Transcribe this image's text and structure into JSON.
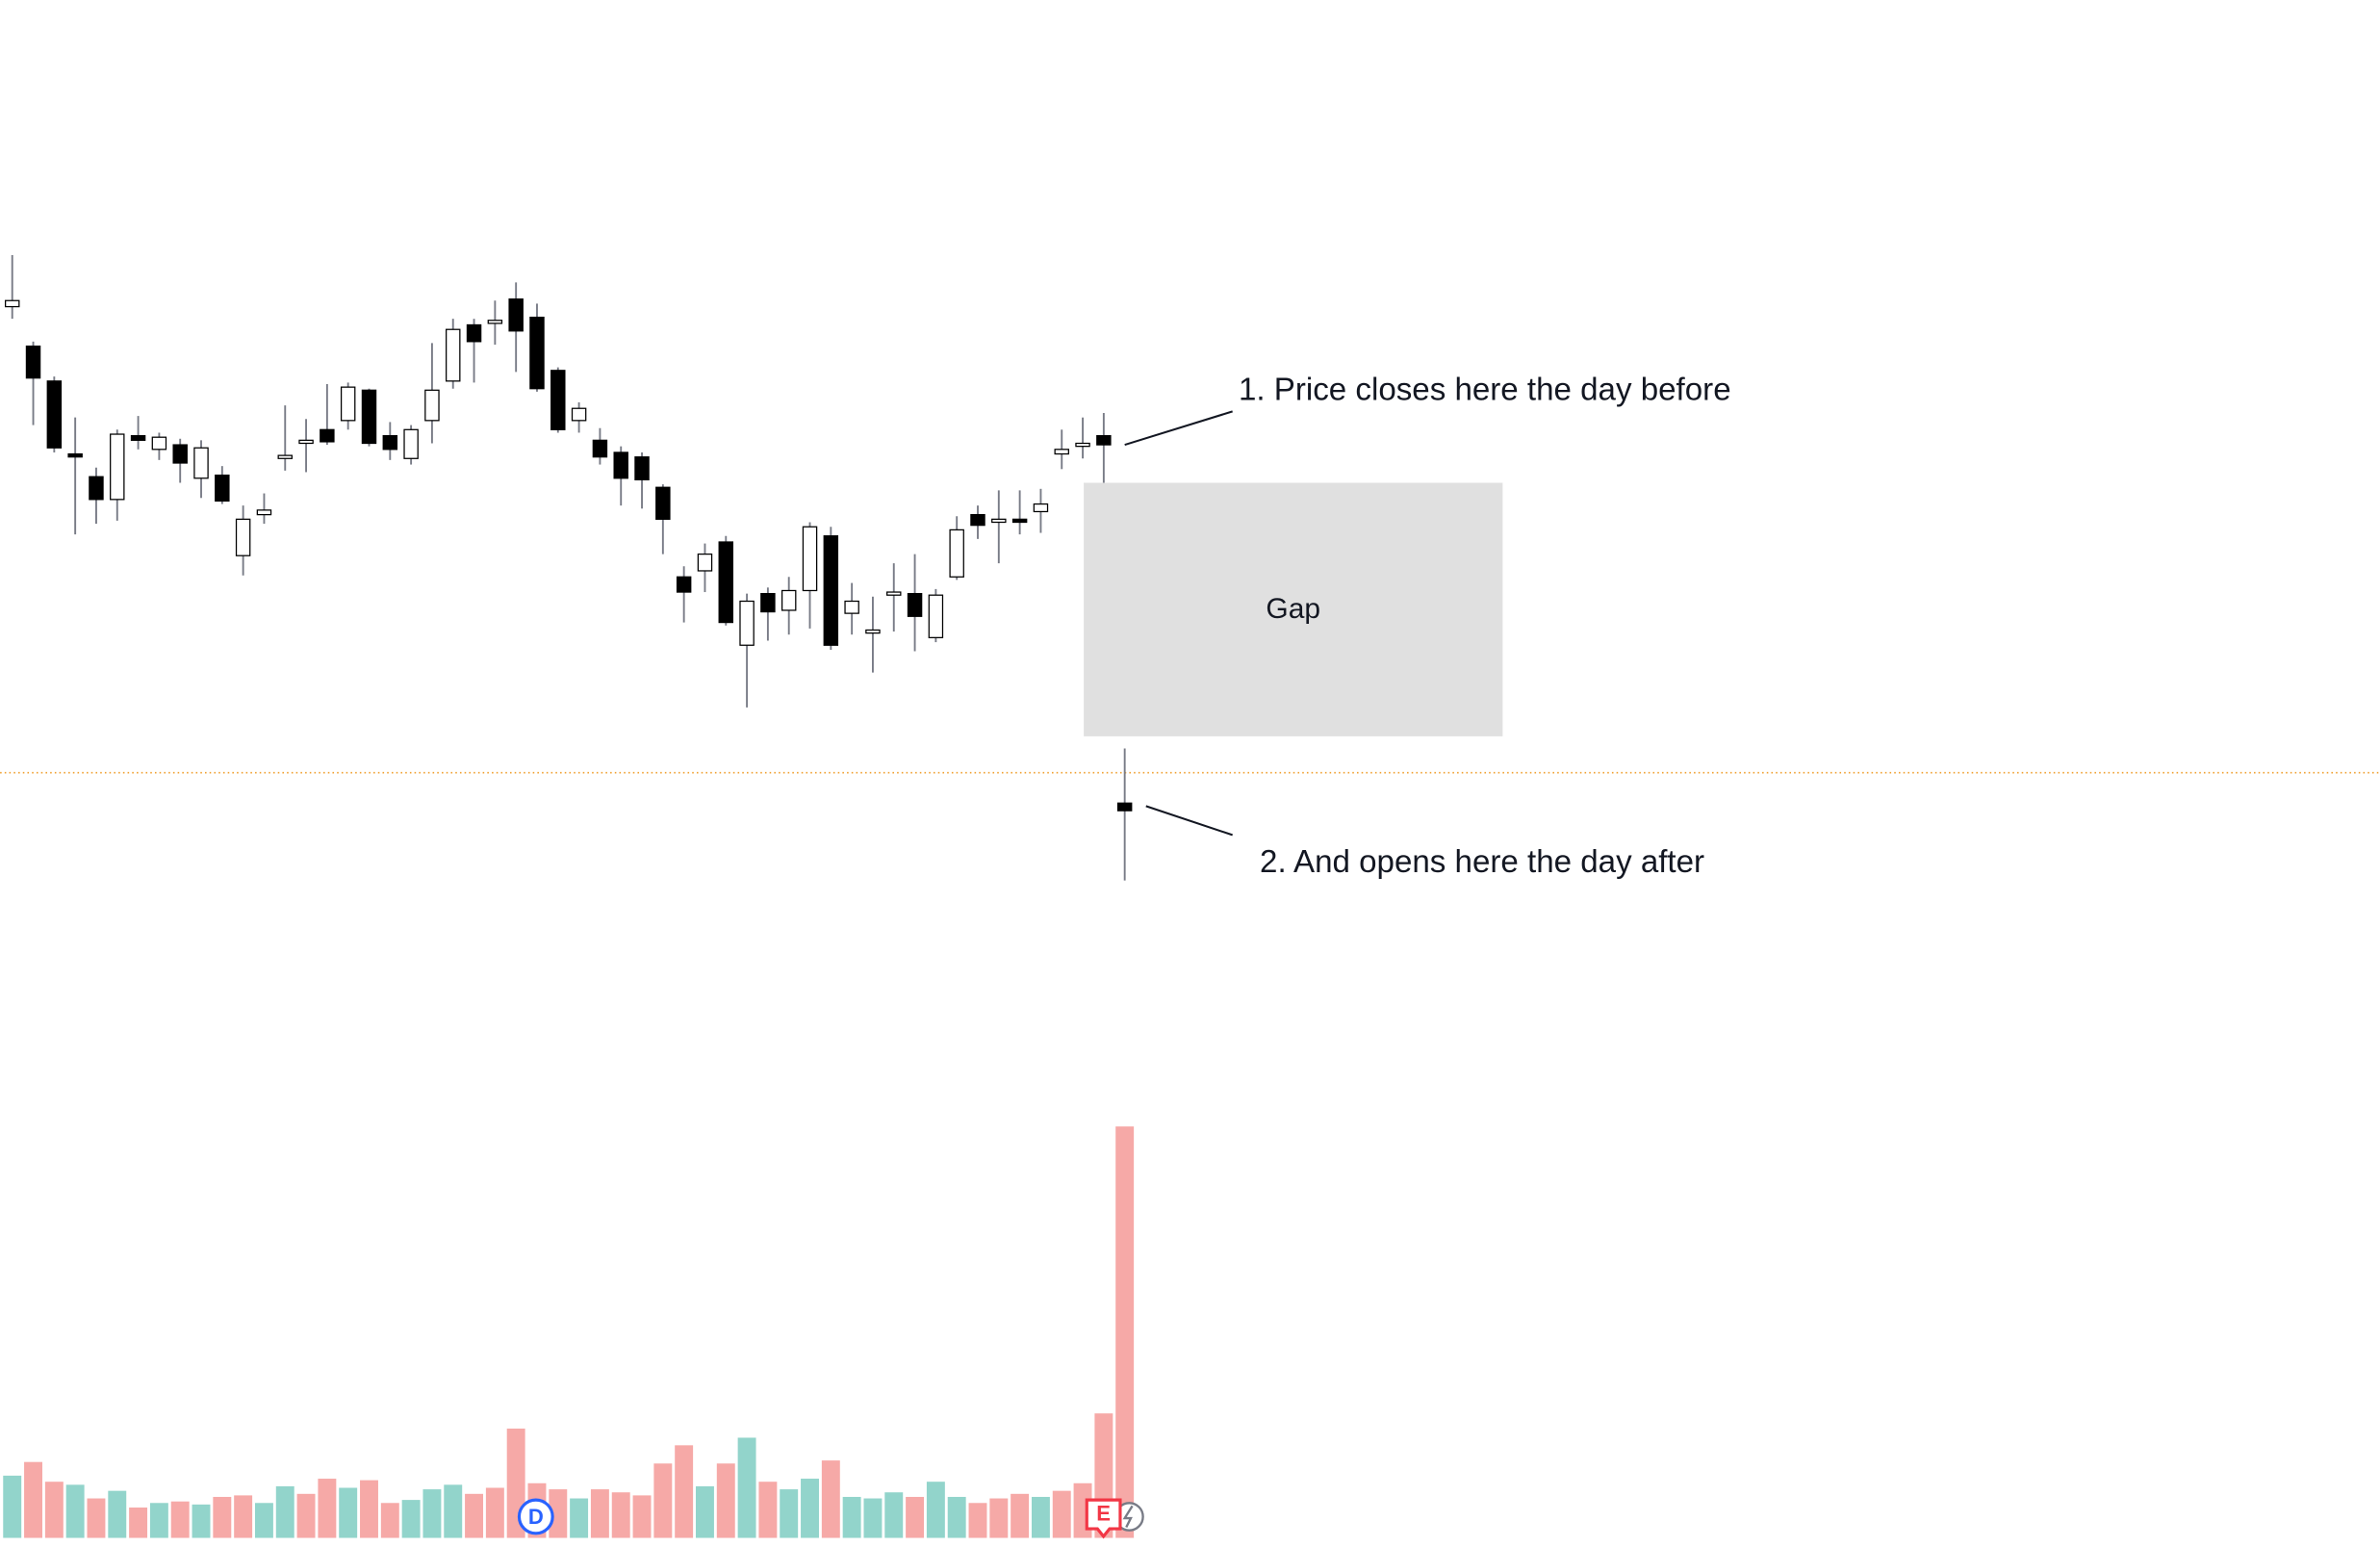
{
  "chart_data": {
    "type": "candlestick",
    "annotations": [
      "1. Price closes here the day before",
      "2. And opens here the day after",
      "Gap"
    ],
    "events": [
      "D",
      "E"
    ],
    "ylim": [
      100,
      160
    ],
    "up_color": "#ffffff",
    "down_color": "#000000",
    "wick_color": "#787b86",
    "open": [
      139.8,
      137.2,
      134.9,
      130.1,
      128.6,
      127.1,
      131.3,
      130.4,
      130.7,
      128.5,
      128.7,
      123.4,
      126.1,
      129.8,
      130.8,
      131.7,
      132.3,
      134.3,
      131.3,
      129.8,
      132.3,
      134.9,
      138.6,
      138.7,
      140.3,
      139.1,
      135.6,
      132.3,
      131,
      130.2,
      129.9,
      127.9,
      122,
      122.4,
      124.3,
      117.5,
      120.9,
      119.8,
      121.1,
      124.7,
      119.6,
      118.3,
      120.8,
      120.9,
      118,
      122,
      126.1,
      125.6,
      125.8,
      126.3,
      130.1,
      130.6,
      131.3,
      107.1
    ],
    "high": [
      143.2,
      137.5,
      135.2,
      132.5,
      129.2,
      131.7,
      132.6,
      131.5,
      131.1,
      131,
      129.3,
      126.7,
      127.5,
      133.3,
      132.4,
      134.7,
      134.8,
      134.4,
      132.2,
      132,
      137.4,
      139,
      139,
      140.2,
      141.4,
      140,
      135.8,
      133.5,
      131.8,
      130.6,
      130.2,
      128.1,
      122.7,
      124.2,
      124.7,
      120.9,
      121.3,
      122,
      125.6,
      125.3,
      121.6,
      120.7,
      122.9,
      123.5,
      121.2,
      126,
      126.7,
      127.7,
      127.7,
      127.8,
      131.7,
      132.5,
      132.8,
      110.7
    ],
    "low": [
      139,
      132,
      130.2,
      124.8,
      125.5,
      125.7,
      130.4,
      129.7,
      128.2,
      127.2,
      126.8,
      122.1,
      125.5,
      129,
      128.9,
      130.7,
      131.7,
      130.6,
      129.7,
      129.4,
      130.8,
      134.4,
      134.8,
      137.3,
      135.5,
      134.2,
      131.5,
      131.5,
      129.4,
      126.7,
      126.5,
      123.5,
      119,
      121,
      118.8,
      113.4,
      117.8,
      118.2,
      118.6,
      117.2,
      118.2,
      115.7,
      118.4,
      117.1,
      117.7,
      121.8,
      124.5,
      122.9,
      124.8,
      124.9,
      129.1,
      129.8,
      128.2,
      102
    ],
    "close": [
      140.2,
      135.1,
      130.5,
      129.9,
      127.1,
      131.4,
      131,
      131.2,
      129.5,
      130.5,
      127,
      125.8,
      126.4,
      130,
      131,
      130.9,
      134.5,
      130.8,
      130.4,
      131.7,
      134.3,
      138.3,
      137.5,
      138.9,
      138.2,
      134.4,
      131.7,
      133.1,
      129.9,
      128.5,
      128.4,
      125.8,
      121,
      123.5,
      119,
      120.4,
      119.7,
      121.1,
      125.3,
      117.5,
      120.4,
      118.5,
      121,
      119.4,
      120.8,
      125.1,
      125.4,
      125.8,
      125.6,
      126.8,
      130.4,
      130.8,
      130.7,
      106.6
    ],
    "price_line": {
      "value": 109.1,
      "color": "#f0a030"
    },
    "volume": {
      "ylim": [
        0,
        300
      ],
      "values": [
        41,
        50,
        37,
        35,
        26,
        31,
        20,
        23,
        24,
        22,
        27,
        28,
        23,
        34,
        29,
        39,
        33,
        38,
        23,
        25,
        32,
        35,
        29,
        33,
        72,
        36,
        32,
        26,
        32,
        30,
        28,
        49,
        61,
        34,
        49,
        66,
        37,
        32,
        39,
        51,
        27,
        26,
        30,
        27,
        37,
        27,
        23,
        26,
        29,
        27,
        31,
        36,
        82,
        271
      ],
      "colors": [
        "#92d4cb",
        "#f6a9a7",
        "#f6a9a7",
        "#92d4cb",
        "#f6a9a7",
        "#92d4cb",
        "#f6a9a7",
        "#92d4cb",
        "#f6a9a7",
        "#92d4cb",
        "#f6a9a7",
        "#f6a9a7",
        "#92d4cb",
        "#92d4cb",
        "#f6a9a7",
        "#f6a9a7",
        "#92d4cb",
        "#f6a9a7",
        "#f6a9a7",
        "#92d4cb",
        "#92d4cb",
        "#92d4cb",
        "#f6a9a7",
        "#f6a9a7",
        "#f6a9a7",
        "#f6a9a7",
        "#f6a9a7",
        "#92d4cb",
        "#f6a9a7",
        "#f6a9a7",
        "#f6a9a7",
        "#f6a9a7",
        "#f6a9a7",
        "#92d4cb",
        "#f6a9a7",
        "#92d4cb",
        "#f6a9a7",
        "#92d4cb",
        "#92d4cb",
        "#f6a9a7",
        "#92d4cb",
        "#92d4cb",
        "#92d4cb",
        "#f6a9a7",
        "#92d4cb",
        "#92d4cb",
        "#f6a9a7",
        "#f6a9a7",
        "#f6a9a7",
        "#92d4cb",
        "#f6a9a7",
        "#f6a9a7",
        "#f6a9a7",
        "#f6a9a7"
      ]
    }
  }
}
